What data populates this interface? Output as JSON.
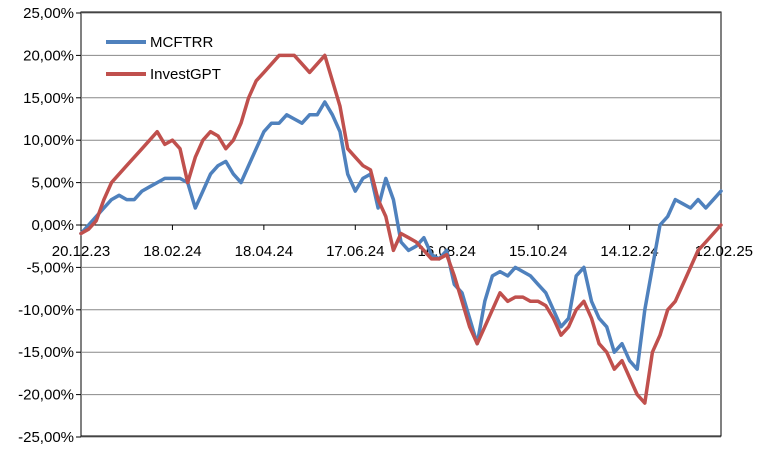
{
  "chart_data": {
    "type": "line",
    "title": "",
    "xlabel": "",
    "ylabel": "",
    "ylim": [
      -25,
      25
    ],
    "y_ticks": [
      25,
      20,
      15,
      10,
      5,
      0,
      -5,
      -10,
      -15,
      -20,
      -25
    ],
    "y_tick_labels": [
      "25,00%",
      "20,00%",
      "15,00%",
      "10,00%",
      "5,00%",
      "0,00%",
      "-5,00%",
      "-10,00%",
      "-15,00%",
      "-20,00%",
      "-25,00%"
    ],
    "x_tick_labels": [
      "20.12.23",
      "18.02.24",
      "18.04.24",
      "17.06.24",
      "16.08.24",
      "15.10.24",
      "14.12.24",
      "12.02.25"
    ],
    "x_range_days": [
      0,
      420
    ],
    "grid": "horizontal",
    "legend_position": "top-left",
    "series": [
      {
        "name": "MCFTRR",
        "color": "#4f81bd",
        "x": [
          0,
          5,
          10,
          15,
          20,
          25,
          30,
          35,
          40,
          45,
          50,
          55,
          60,
          65,
          70,
          75,
          80,
          85,
          90,
          95,
          100,
          105,
          110,
          115,
          120,
          125,
          130,
          135,
          140,
          145,
          150,
          155,
          160,
          165,
          170,
          175,
          180,
          185,
          190,
          195,
          200,
          205,
          210,
          215,
          220,
          225,
          230,
          235,
          240,
          245,
          250,
          255,
          260,
          265,
          270,
          275,
          280,
          285,
          290,
          295,
          300,
          305,
          310,
          315,
          320,
          325,
          330,
          335,
          340,
          345,
          350,
          355,
          360,
          365,
          370,
          375,
          380,
          385,
          390,
          395,
          400,
          405,
          410,
          415,
          420
        ],
        "y": [
          -1,
          0,
          1,
          2,
          3,
          3.5,
          3,
          3,
          4,
          4.5,
          5,
          5.5,
          5.5,
          5.5,
          5,
          2,
          4,
          6,
          7,
          7.5,
          6,
          5,
          7,
          9,
          11,
          12,
          12,
          13,
          12.5,
          12,
          13,
          13,
          14.5,
          13,
          11,
          6,
          4,
          5.5,
          6,
          2,
          5.5,
          3,
          -2,
          -3,
          -2.5,
          -1.5,
          -3.5,
          -4,
          -3,
          -7,
          -8,
          -11,
          -14,
          -9,
          -6,
          -5.5,
          -6,
          -5,
          -5.5,
          -6,
          -7,
          -8,
          -10,
          -12,
          -11,
          -6,
          -5,
          -9,
          -11,
          -12,
          -15,
          -14,
          -16,
          -17,
          -10,
          -5,
          0,
          1,
          3,
          2.5,
          2,
          3,
          2,
          3,
          4
        ]
      },
      {
        "name": "InvestGPT",
        "color": "#c0504d",
        "x": [
          0,
          5,
          10,
          15,
          20,
          25,
          30,
          35,
          40,
          45,
          50,
          55,
          60,
          65,
          70,
          75,
          80,
          85,
          90,
          95,
          100,
          105,
          110,
          115,
          120,
          125,
          130,
          135,
          140,
          145,
          150,
          155,
          160,
          165,
          170,
          175,
          180,
          185,
          190,
          195,
          200,
          205,
          210,
          215,
          220,
          225,
          230,
          235,
          240,
          245,
          250,
          255,
          260,
          265,
          270,
          275,
          280,
          285,
          290,
          295,
          300,
          305,
          310,
          315,
          320,
          325,
          330,
          335,
          340,
          345,
          350,
          355,
          360,
          365,
          370,
          375,
          380,
          385,
          390,
          395,
          400,
          405,
          410,
          415,
          420
        ],
        "y": [
          -1,
          -0.5,
          0.5,
          3,
          5,
          6,
          7,
          8,
          9,
          10,
          11,
          9.5,
          10,
          9,
          5,
          8,
          10,
          11,
          10.5,
          9,
          10,
          12,
          15,
          17,
          18,
          19,
          20,
          20,
          20,
          19,
          18,
          19,
          20,
          17,
          14,
          9,
          8,
          7,
          6.5,
          3,
          1,
          -3,
          -1,
          -1.5,
          -2,
          -3,
          -4,
          -4,
          -3.5,
          -6,
          -9,
          -12,
          -14,
          -12,
          -10,
          -8,
          -9,
          -8.5,
          -8.5,
          -9,
          -9,
          -9.5,
          -11,
          -13,
          -12,
          -10,
          -9,
          -11,
          -14,
          -15,
          -17,
          -16,
          -18,
          -20,
          -21,
          -15,
          -13,
          -10,
          -9,
          -7,
          -5,
          -3,
          -2,
          -1,
          0
        ]
      }
    ]
  }
}
